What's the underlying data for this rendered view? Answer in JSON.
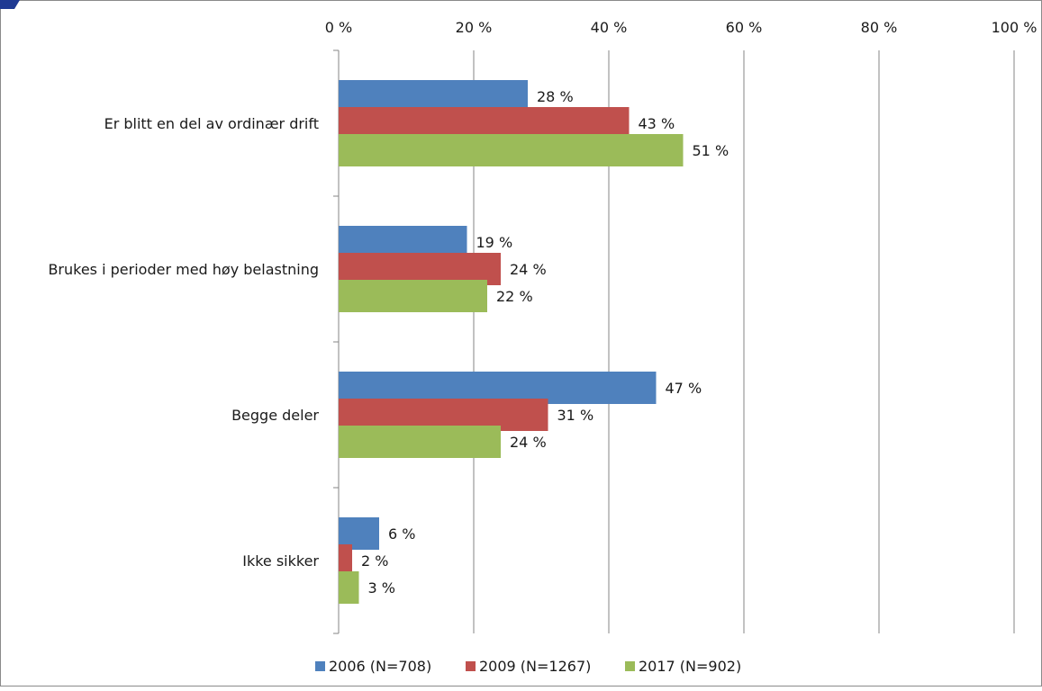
{
  "chart_data": {
    "type": "bar",
    "orientation": "horizontal",
    "title": "",
    "xlabel": "",
    "ylabel": "",
    "xlim": [
      0,
      100
    ],
    "x_ticks": [
      0,
      20,
      40,
      60,
      80,
      100
    ],
    "x_tick_labels": [
      "0 %",
      "20 %",
      "40 %",
      "60 %",
      "80 %",
      "100 %"
    ],
    "x_axis_position": "top",
    "grid": "vertical",
    "legend_position": "bottom",
    "categories": [
      "Er blitt en del av ordinær drift",
      "Brukes i perioder med høy belastning",
      "Begge deler",
      "Ikke sikker"
    ],
    "series": [
      {
        "name": "2006 (N=708)",
        "color": "#4f81bd",
        "values": [
          28,
          19,
          47,
          6
        ],
        "labels": [
          "28 %",
          "19 %",
          "47 %",
          "6 %"
        ]
      },
      {
        "name": "2009 (N=1267)",
        "color": "#c0504d",
        "values": [
          43,
          24,
          31,
          2
        ],
        "labels": [
          "43 %",
          "24 %",
          "31 %",
          "2 %"
        ]
      },
      {
        "name": "2017 (N=902)",
        "color": "#9bbb59",
        "values": [
          51,
          22,
          24,
          3
        ],
        "labels": [
          "51 %",
          "22 %",
          "24 %",
          "3 %"
        ]
      }
    ]
  },
  "colors": {
    "frame": "#8a8a8a",
    "grid": "#868686",
    "header_accent": "#1f3a93"
  }
}
